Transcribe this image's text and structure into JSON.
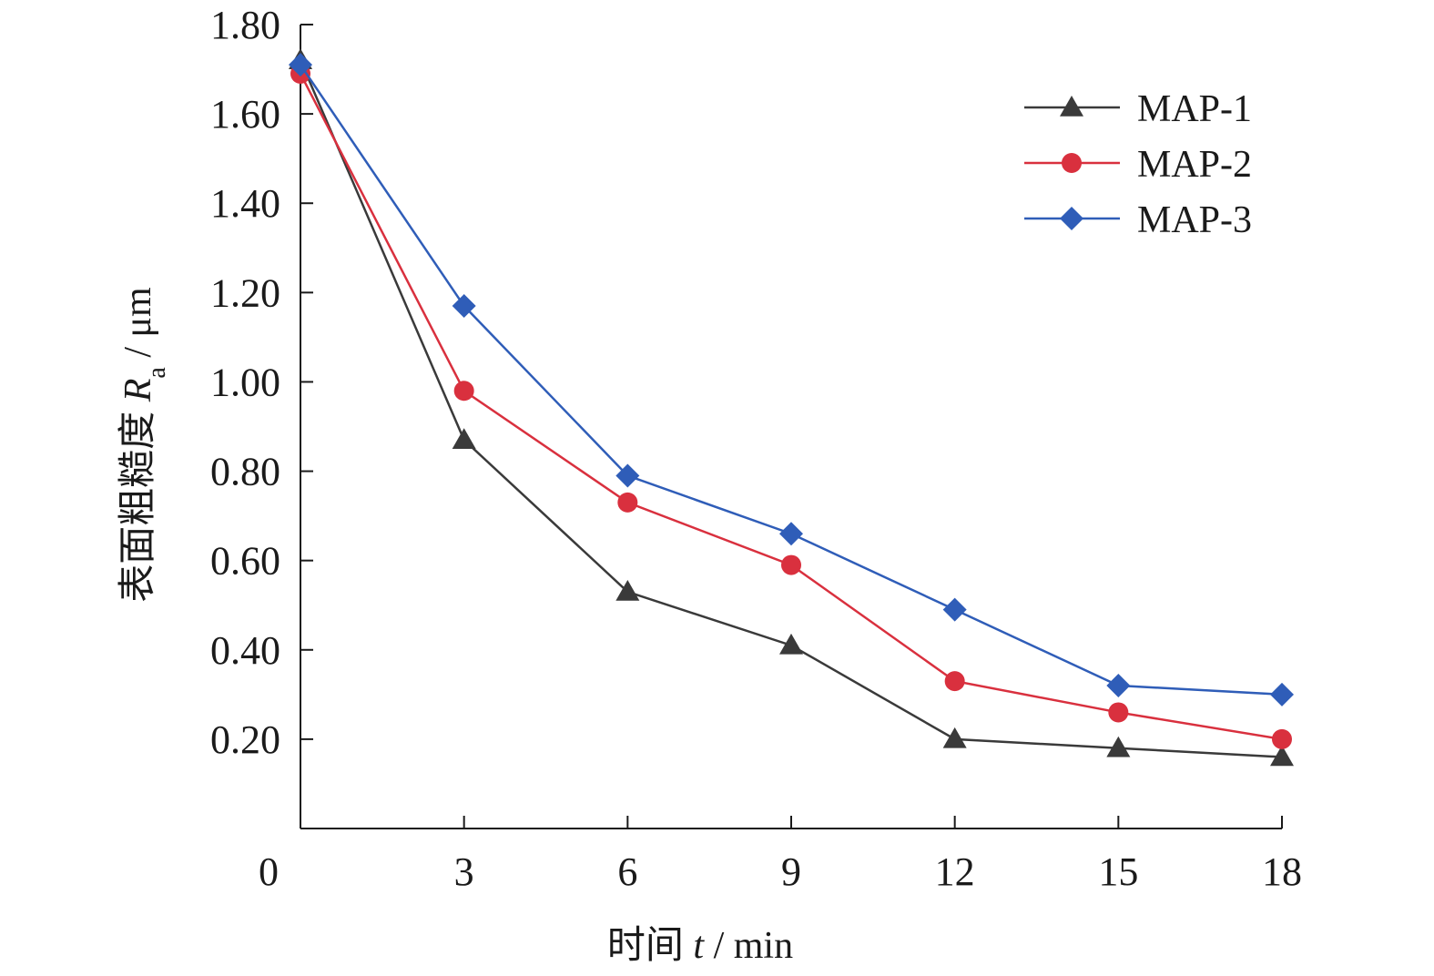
{
  "chart_data": {
    "type": "line",
    "x": [
      0,
      3,
      6,
      9,
      12,
      15,
      18
    ],
    "x_tick_labels": [
      "0",
      "3",
      "6",
      "9",
      "12",
      "15",
      "18"
    ],
    "y_tick_labels": [
      "0.20",
      "0.40",
      "0.60",
      "0.80",
      "1.00",
      "1.20",
      "1.40",
      "1.60",
      "1.80"
    ],
    "xlim": [
      0,
      18
    ],
    "ylim": [
      0,
      1.8
    ],
    "xlabel": {
      "prefix": "时间 ",
      "var": "t",
      "suffix": " / min"
    },
    "ylabel": {
      "prefix": "表面粗糙度 ",
      "var": "R",
      "sub": "a",
      "suffix": " / μm"
    },
    "grid": false,
    "legend_position": "top-right",
    "series": [
      {
        "name": "MAP-1",
        "color": "#3a3a3a",
        "marker": "triangle",
        "values": [
          1.72,
          0.87,
          0.53,
          0.41,
          0.2,
          0.18,
          0.16
        ]
      },
      {
        "name": "MAP-2",
        "color": "#d9303e",
        "marker": "circle",
        "values": [
          1.69,
          0.98,
          0.73,
          0.59,
          0.33,
          0.26,
          0.2
        ]
      },
      {
        "name": "MAP-3",
        "color": "#2f5db8",
        "marker": "diamond",
        "values": [
          1.71,
          1.17,
          0.79,
          0.66,
          0.49,
          0.32,
          0.3
        ]
      }
    ]
  }
}
